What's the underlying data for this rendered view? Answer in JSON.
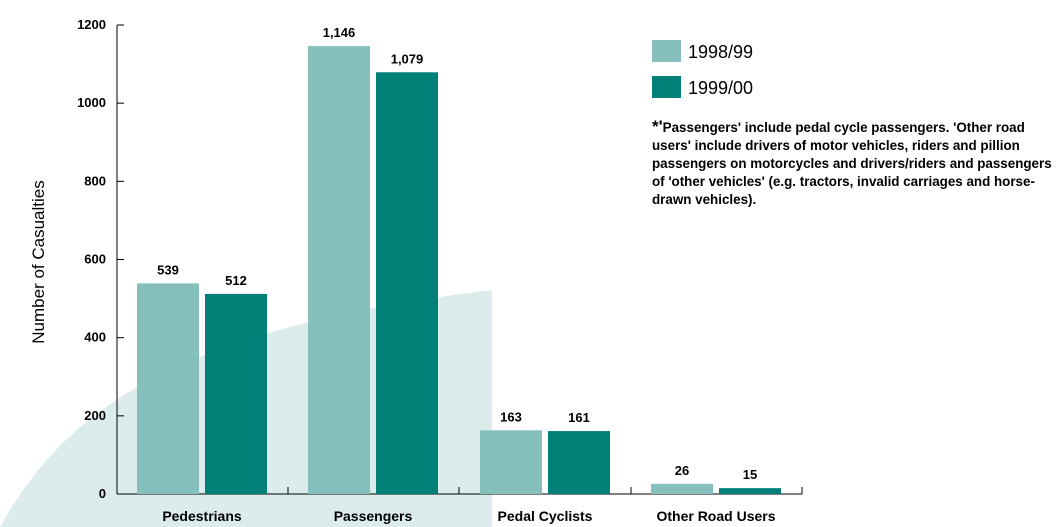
{
  "colors": {
    "series_1": "#86c0bc",
    "series_2": "#008077",
    "background_shape": "#dcecec"
  },
  "note": {
    "marker": "*'",
    "text": "Passengers' include pedal cycle passengers. 'Other road users' include drivers of motor vehicles, riders and pillion passengers on motorcycles and drivers/riders and passengers of 'other vehicles' (e.g. tractors, invalid carriages and horse-drawn vehicles)."
  },
  "chart_data": {
    "type": "bar",
    "title": "",
    "xlabel": "",
    "ylabel": "Number of Casualties",
    "ylim": [
      0,
      1200
    ],
    "yticks": [
      0,
      200,
      400,
      600,
      800,
      1000,
      1200
    ],
    "grid": false,
    "legend_position": "top-right",
    "categories": [
      "Pedestrians",
      "Passengers",
      "Pedal Cyclists",
      "Other Road Users"
    ],
    "series": [
      {
        "name": "1998/99",
        "values": [
          539,
          1146,
          163,
          26
        ],
        "labels": [
          "539",
          "1,146",
          "163",
          "26"
        ]
      },
      {
        "name": "1999/00",
        "values": [
          512,
          1079,
          161,
          15
        ],
        "labels": [
          "512",
          "1,079",
          "161",
          "15"
        ]
      }
    ]
  }
}
